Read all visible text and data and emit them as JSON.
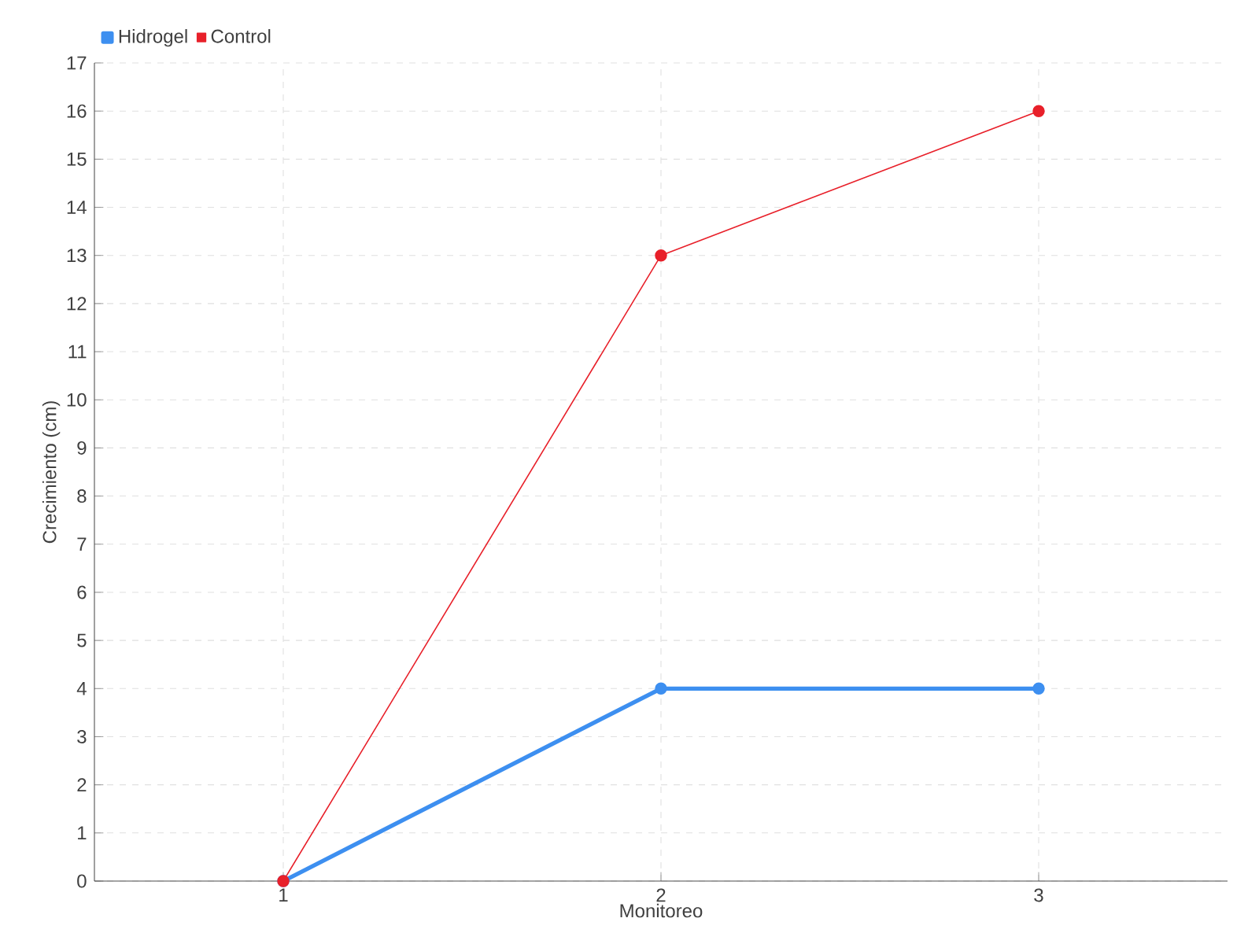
{
  "chart_data": {
    "type": "line",
    "xlabel": "Monitoreo",
    "ylabel": "Crecimiento (cm)",
    "categories": [
      "1",
      "2",
      "3"
    ],
    "series": [
      {
        "name": "Hidrogel",
        "color": "#3d8ff0",
        "values": [
          0,
          4,
          4
        ]
      },
      {
        "name": "Control",
        "color": "#e8202a",
        "values": [
          0,
          13,
          16
        ]
      }
    ],
    "ylim": [
      0,
      17
    ],
    "yticks": [
      0,
      1,
      2,
      3,
      4,
      5,
      6,
      7,
      8,
      9,
      10,
      11,
      12,
      13,
      14,
      15,
      16,
      17
    ],
    "grid": true,
    "legend": "top left",
    "marker": "circle",
    "line_style": "solid"
  }
}
